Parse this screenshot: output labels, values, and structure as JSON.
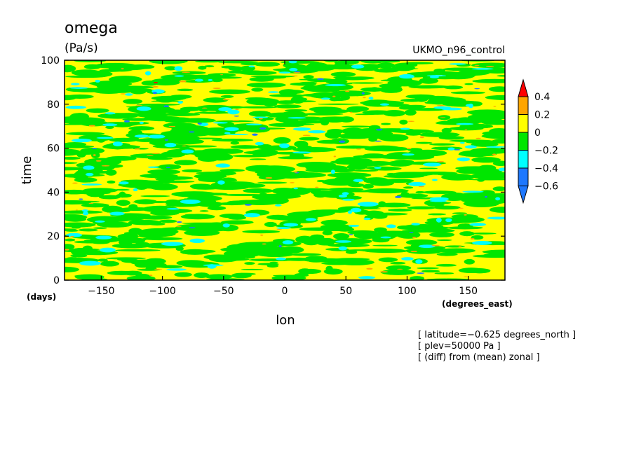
{
  "chart_data": {
    "type": "heatmap",
    "title": "omega",
    "units": "(Pa/s)",
    "run_label": "UKMO_n96_control",
    "xlabel": "lon",
    "ylabel": "time",
    "x_unit_label": "(degrees_east)",
    "y_unit_label": "(days)",
    "xlim": [
      -180,
      180
    ],
    "ylim": [
      0,
      100
    ],
    "x_ticks": [
      -150,
      -100,
      -50,
      0,
      50,
      100,
      150
    ],
    "y_ticks": [
      0,
      20,
      40,
      60,
      80,
      100
    ],
    "x_tick_labels": [
      "−150",
      "−100",
      "−50",
      "0",
      "50",
      "100",
      "150"
    ],
    "y_tick_labels": [
      "0",
      "20",
      "40",
      "60",
      "80",
      "100"
    ],
    "colorbar": {
      "levels": [
        -0.6,
        -0.4,
        -0.2,
        0,
        0.2,
        0.4
      ],
      "level_labels": [
        "−0.6",
        "−0.4",
        "−0.2",
        "0",
        "0.2",
        "0.4"
      ],
      "colors": [
        "#1e78ff",
        "#00ffff",
        "#00e600",
        "#ffff00",
        "#ffa500",
        "#ff0000"
      ]
    },
    "info_lines": [
      "[ latitude=−0.625 degrees_north ]",
      "[ plev=50000 Pa ]",
      "[ (diff) from (mean) zonal ]"
    ]
  }
}
